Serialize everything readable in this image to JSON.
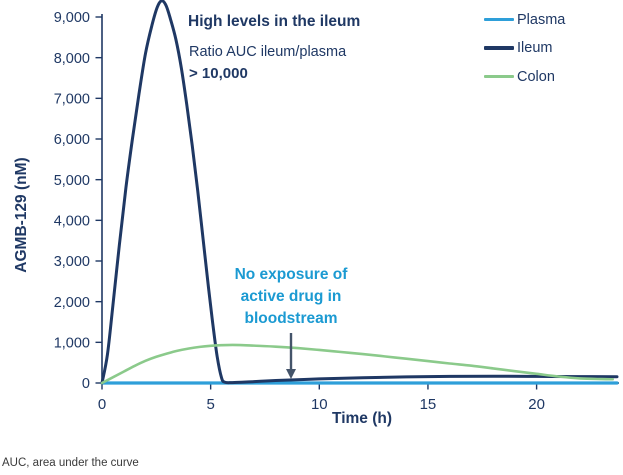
{
  "header": {
    "title_bold": "High levels in the ileum",
    "subtitle": "Ratio AUC ileum/plasma",
    "subtitle_bold": "> 10,000"
  },
  "annotation": {
    "lines": [
      "No exposure of",
      "active drug in",
      "bloodstream"
    ]
  },
  "footnote": "AUC, area under the curve",
  "colors": {
    "navy": "#1F3864",
    "plasma_blue": "#2E9FD9",
    "colon_green": "#8BCA8B",
    "annotation_blue": "#1B9AD2",
    "arrow_gray": "#44546A",
    "footnote_gray": "#3A3A3A"
  },
  "chart_data": {
    "type": "line",
    "title": "",
    "xlabel": "Time (h)",
    "ylabel": "AGMB-129 (nM)",
    "xlim": [
      0,
      23.7
    ],
    "ylim": [
      0,
      9000
    ],
    "grid": false,
    "legend_position": "top-right",
    "x_ticks": [
      {
        "v": 0,
        "label": "0"
      },
      {
        "v": 5,
        "label": "5"
      },
      {
        "v": 10,
        "label": "10"
      },
      {
        "v": 15,
        "label": "15"
      },
      {
        "v": 20,
        "label": "20"
      }
    ],
    "y_ticks": [
      {
        "v": 0,
        "label": "0"
      },
      {
        "v": 1000,
        "label": "1,000"
      },
      {
        "v": 2000,
        "label": "2,000"
      },
      {
        "v": 3000,
        "label": "3,000"
      },
      {
        "v": 4000,
        "label": "4,000"
      },
      {
        "v": 5000,
        "label": "5,000"
      },
      {
        "v": 6000,
        "label": "6,000"
      },
      {
        "v": 7000,
        "label": "7,000"
      },
      {
        "v": 8000,
        "label": "8,000"
      },
      {
        "v": 9000,
        "label": "9,000"
      }
    ],
    "series": [
      {
        "name": "Plasma",
        "color": "#2E9FD9",
        "width": 3.2,
        "points": [
          [
            0,
            0
          ],
          [
            5,
            0
          ],
          [
            10,
            0
          ],
          [
            15,
            0
          ],
          [
            20,
            0
          ],
          [
            23.7,
            0
          ]
        ]
      },
      {
        "name": "Ileum",
        "color": "#1F3864",
        "width": 3,
        "points": [
          [
            0,
            0
          ],
          [
            0.25,
            700
          ],
          [
            0.5,
            1900
          ],
          [
            0.8,
            3400
          ],
          [
            1.1,
            4800
          ],
          [
            1.4,
            6000
          ],
          [
            1.7,
            7100
          ],
          [
            2.0,
            8100
          ],
          [
            2.3,
            8800
          ],
          [
            2.55,
            9250
          ],
          [
            2.75,
            9400
          ],
          [
            2.95,
            9280
          ],
          [
            3.15,
            8950
          ],
          [
            3.4,
            8450
          ],
          [
            3.65,
            7750
          ],
          [
            3.9,
            6850
          ],
          [
            4.15,
            5850
          ],
          [
            4.4,
            4750
          ],
          [
            4.65,
            3550
          ],
          [
            4.9,
            2350
          ],
          [
            5.1,
            1450
          ],
          [
            5.3,
            650
          ],
          [
            5.5,
            130
          ],
          [
            5.65,
            20
          ],
          [
            6,
            10
          ],
          [
            7,
            35
          ],
          [
            8,
            60
          ],
          [
            10,
            100
          ],
          [
            12,
            130
          ],
          [
            14,
            150
          ],
          [
            16,
            162
          ],
          [
            18,
            167
          ],
          [
            20,
            163
          ],
          [
            22,
            158
          ],
          [
            23.7,
            155
          ]
        ]
      },
      {
        "name": "Colon",
        "color": "#8BCA8B",
        "width": 2.6,
        "points": [
          [
            0,
            0
          ],
          [
            0.5,
            140
          ],
          [
            1,
            280
          ],
          [
            1.5,
            420
          ],
          [
            2,
            545
          ],
          [
            2.5,
            645
          ],
          [
            3,
            725
          ],
          [
            3.5,
            795
          ],
          [
            4,
            848
          ],
          [
            4.5,
            888
          ],
          [
            5,
            915
          ],
          [
            5.5,
            930
          ],
          [
            6,
            936
          ],
          [
            6.5,
            931
          ],
          [
            7,
            919
          ],
          [
            8,
            894
          ],
          [
            9,
            858
          ],
          [
            10,
            812
          ],
          [
            11,
            762
          ],
          [
            12,
            712
          ],
          [
            13,
            655
          ],
          [
            14,
            597
          ],
          [
            15,
            540
          ],
          [
            16,
            480
          ],
          [
            17,
            425
          ],
          [
            18,
            358
          ],
          [
            19,
            290
          ],
          [
            20,
            225
          ],
          [
            21,
            160
          ],
          [
            22,
            112
          ],
          [
            23,
            96
          ],
          [
            23.5,
            92
          ]
        ]
      }
    ]
  }
}
